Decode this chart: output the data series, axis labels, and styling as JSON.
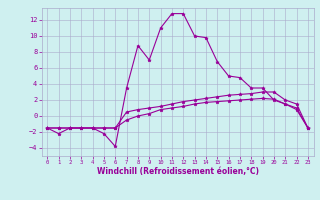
{
  "xlabel": "Windchill (Refroidissement éolien,°C)",
  "x": [
    0,
    1,
    2,
    3,
    4,
    5,
    6,
    7,
    8,
    9,
    10,
    11,
    12,
    13,
    14,
    15,
    16,
    17,
    18,
    19,
    20,
    21,
    22,
    23
  ],
  "line1": [
    -1.5,
    -2.2,
    -1.5,
    -1.5,
    -1.5,
    -2.2,
    -3.8,
    3.5,
    8.8,
    7.0,
    11.0,
    12.8,
    12.8,
    10.0,
    9.8,
    6.8,
    5.0,
    4.8,
    3.5,
    3.5,
    2.0,
    1.5,
    1.0,
    -1.5
  ],
  "line2": [
    -1.5,
    -1.5,
    -1.5,
    -1.5,
    -1.5,
    -1.5,
    -1.5,
    0.5,
    0.8,
    1.0,
    1.2,
    1.5,
    1.8,
    2.0,
    2.2,
    2.4,
    2.6,
    2.7,
    2.8,
    3.0,
    3.0,
    2.0,
    1.5,
    -1.5
  ],
  "line3": [
    -1.5,
    -1.5,
    -1.5,
    -1.5,
    -1.5,
    -1.5,
    -1.5,
    -0.5,
    0.0,
    0.3,
    0.8,
    1.0,
    1.2,
    1.5,
    1.7,
    1.8,
    1.9,
    2.0,
    2.1,
    2.2,
    2.1,
    1.5,
    0.8,
    -1.5
  ],
  "bg_color": "#cff0f0",
  "grid_color": "#aaaacc",
  "line_color": "#990099",
  "marker": "*",
  "ylim": [
    -5,
    13.5
  ],
  "xlim": [
    -0.5,
    23.5
  ],
  "yticks": [
    -4,
    -2,
    0,
    2,
    4,
    6,
    8,
    10,
    12
  ],
  "xticks": [
    0,
    1,
    2,
    3,
    4,
    5,
    6,
    7,
    8,
    9,
    10,
    11,
    12,
    13,
    14,
    15,
    16,
    17,
    18,
    19,
    20,
    21,
    22,
    23
  ]
}
